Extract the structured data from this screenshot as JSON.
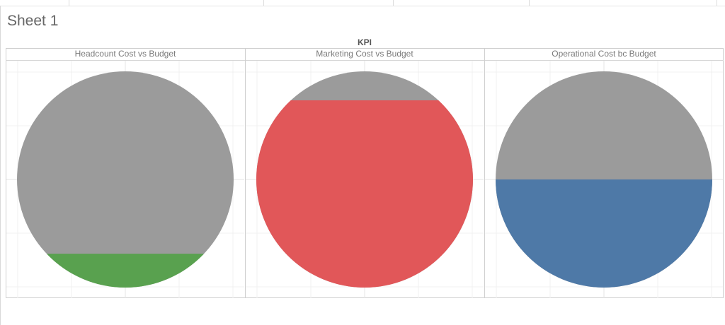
{
  "sheet": {
    "title": "Sheet 1"
  },
  "chart_data": {
    "type": "pie",
    "column_label": "KPI",
    "grid": true,
    "panels": [
      {
        "header": "Headcount Cost vs Budget",
        "fill_fraction": 0.1,
        "fill_color": "#59a14f",
        "background_color": "#9b9b9b"
      },
      {
        "header": "Marketing Cost vs Budget",
        "fill_fraction": 0.92,
        "fill_color": "#e15759",
        "background_color": "#9b9b9b"
      },
      {
        "header": "Operational Cost bc Budget",
        "fill_fraction": 0.5,
        "fill_color": "#4e79a7",
        "background_color": "#9b9b9b"
      }
    ]
  }
}
